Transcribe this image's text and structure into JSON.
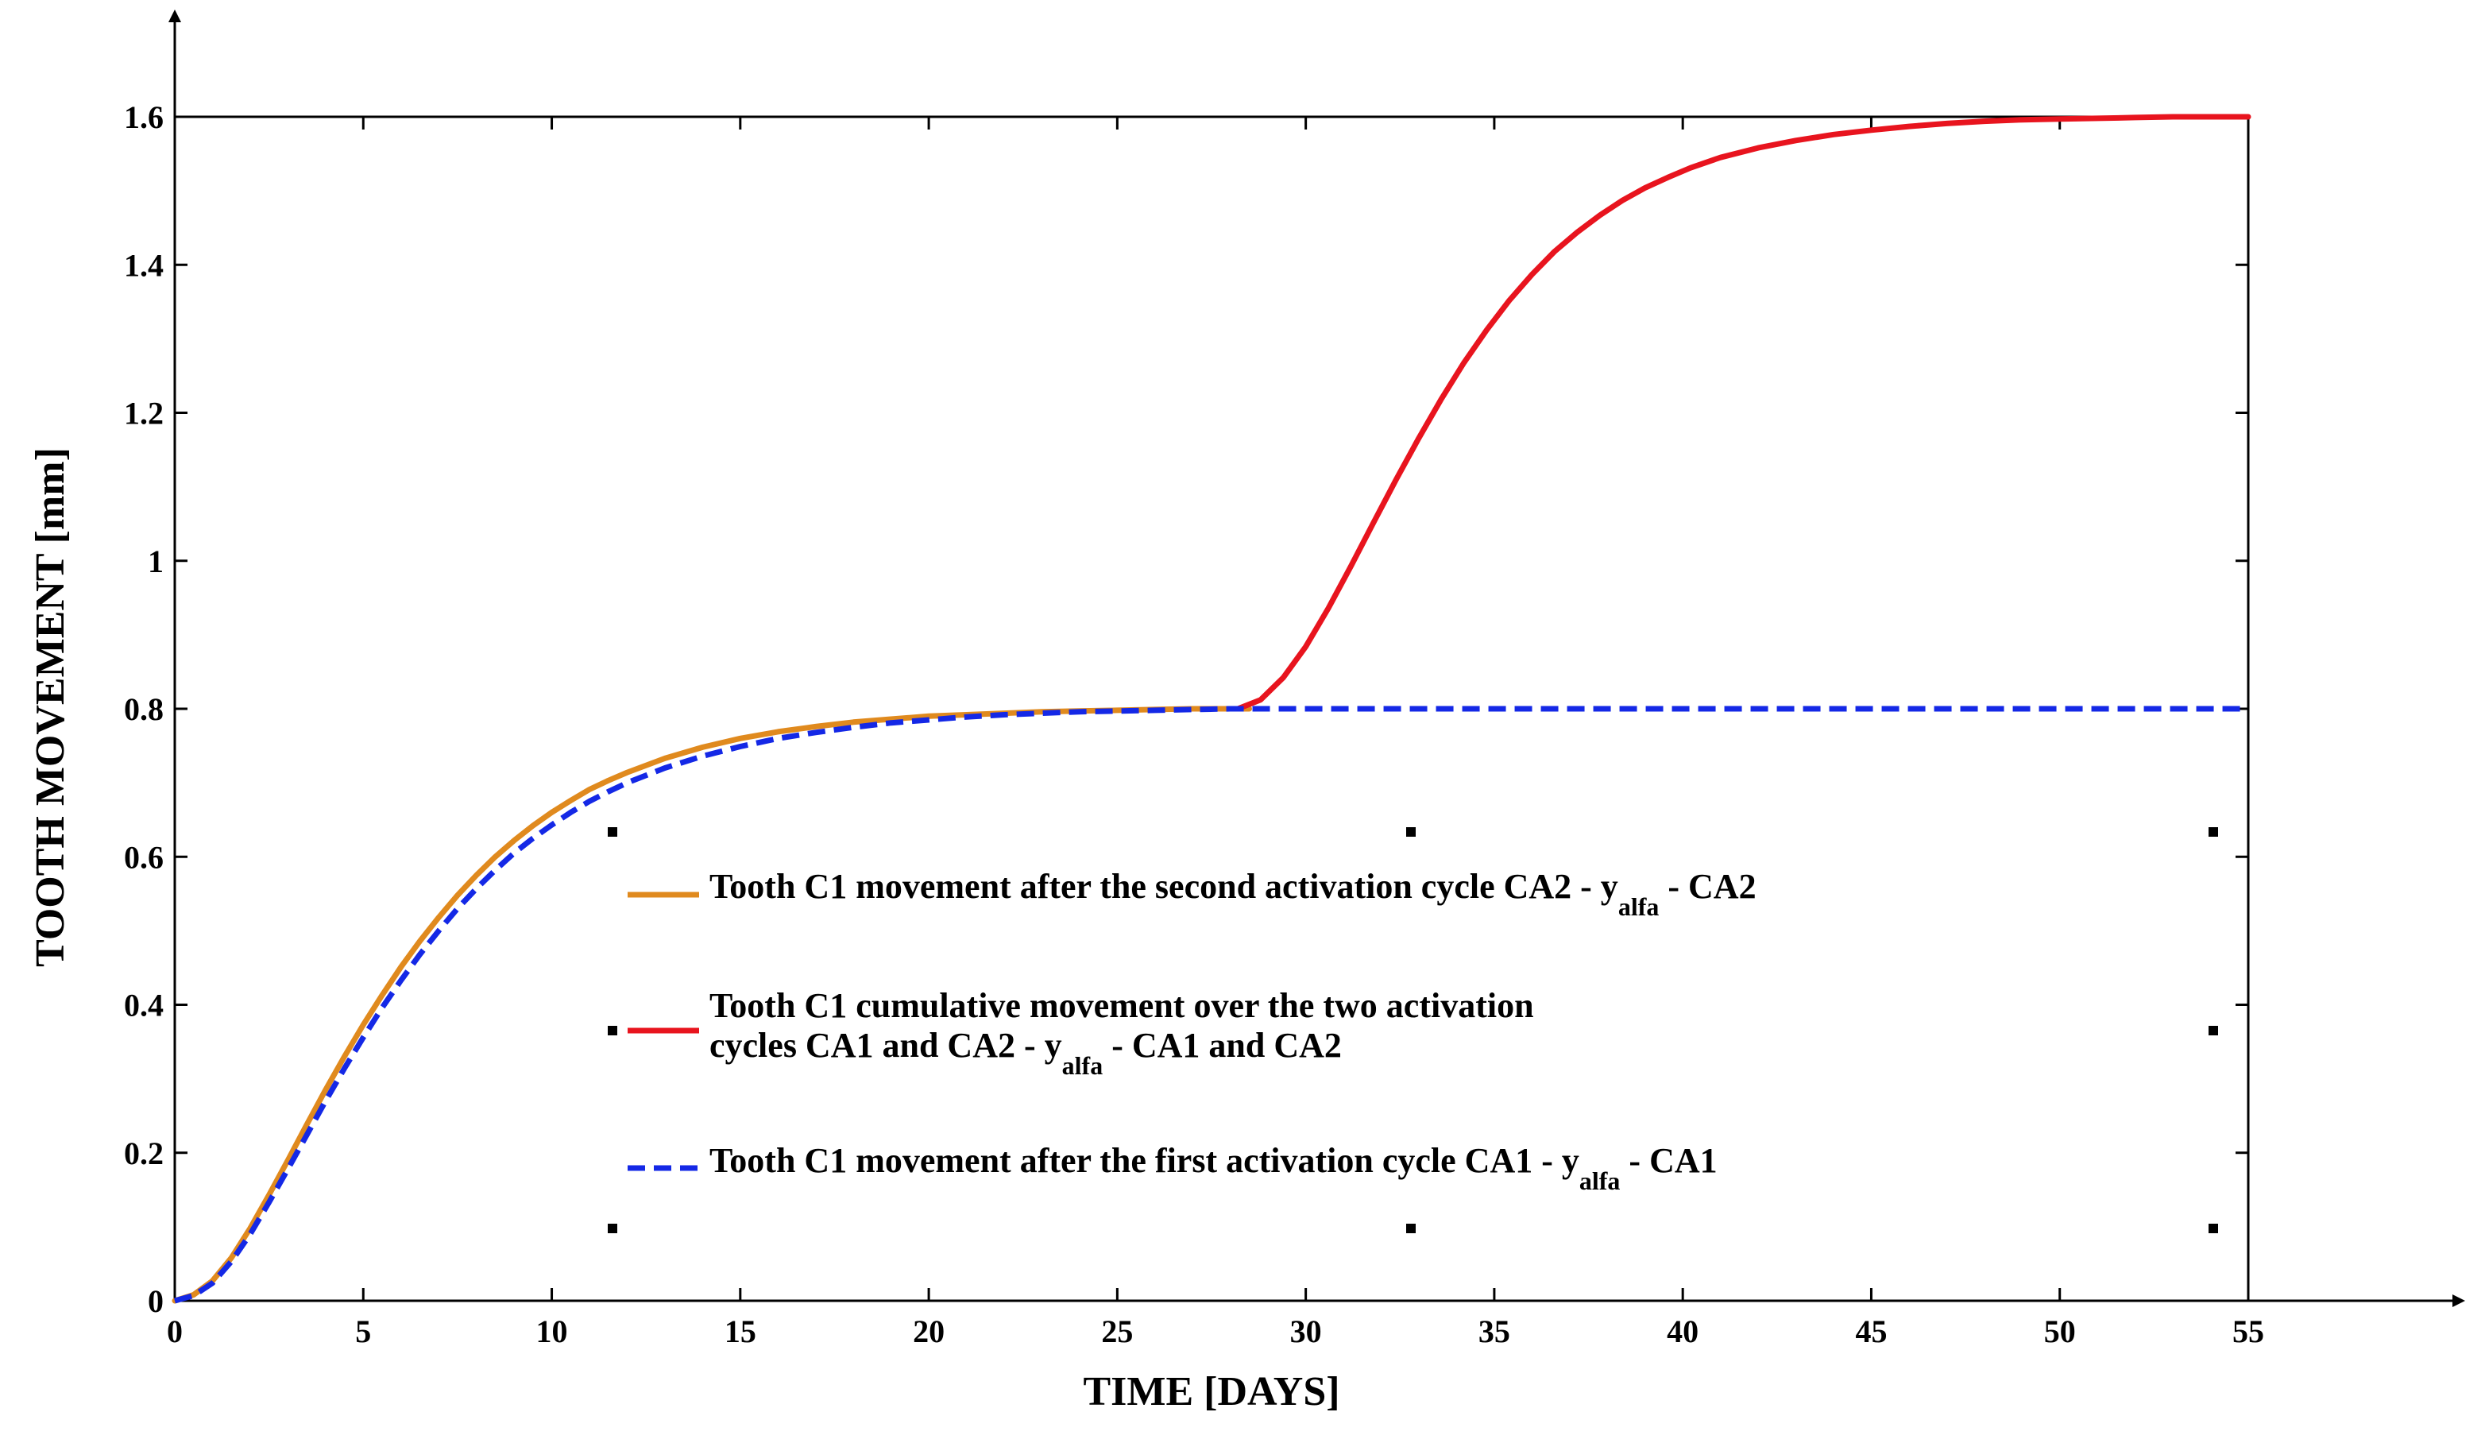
{
  "chart_data": {
    "type": "line",
    "title": "",
    "xlabel": "TIME [DAYS]",
    "ylabel": "TOOTH MOVEMENT [mm]",
    "xlim": [
      0,
      55
    ],
    "ylim": [
      0,
      1.6
    ],
    "xticks": [
      0,
      5,
      10,
      15,
      20,
      25,
      30,
      35,
      40,
      45,
      50,
      55
    ],
    "yticks": [
      0,
      0.2,
      0.4,
      0.6,
      0.8,
      1,
      1.2,
      1.4,
      1.6
    ],
    "xtick_labels": [
      "0",
      "5",
      "10",
      "15",
      "20",
      "25",
      "30",
      "35",
      "40",
      "45",
      "50",
      "55"
    ],
    "ytick_labels": [
      "0",
      "0.2",
      "0.4",
      "0.6",
      "0.8",
      "1",
      "1.2",
      "1.4",
      "1.6"
    ],
    "grid": false,
    "legend_position": "center",
    "series": [
      {
        "name": "Tooth C1 movement after the second activation cycle CA2 - y_alfa - CA2",
        "color": "#E08A1E",
        "style": "solid",
        "x": [
          0,
          0.5,
          1,
          1.5,
          2,
          2.5,
          3,
          3.5,
          4,
          4.5,
          5,
          5.5,
          6,
          6.5,
          7,
          7.5,
          8,
          8.5,
          9,
          9.5,
          10,
          10.5,
          11,
          11.5,
          12,
          13,
          14,
          15,
          16,
          17,
          18,
          19,
          20,
          21,
          22,
          23,
          24,
          25,
          26,
          27,
          28.5
        ],
        "y": [
          0,
          0.008,
          0.027,
          0.058,
          0.098,
          0.143,
          0.19,
          0.238,
          0.285,
          0.33,
          0.373,
          0.413,
          0.451,
          0.486,
          0.518,
          0.548,
          0.575,
          0.6,
          0.622,
          0.642,
          0.66,
          0.676,
          0.691,
          0.703,
          0.714,
          0.733,
          0.748,
          0.76,
          0.769,
          0.776,
          0.782,
          0.786,
          0.79,
          0.792,
          0.794,
          0.796,
          0.797,
          0.798,
          0.799,
          0.8,
          0.8
        ]
      },
      {
        "name": "Tooth C1 cumulative movement over the two activation cycles CA1 and CA2 - y_alfa - CA1 and CA2",
        "color": "#E8141E",
        "style": "solid",
        "x": [
          28.2,
          28.8,
          29.4,
          30,
          30.6,
          31.2,
          31.8,
          32.4,
          33,
          33.6,
          34.2,
          34.8,
          35.4,
          36,
          36.6,
          37.2,
          37.8,
          38.4,
          39,
          39.6,
          40.2,
          41,
          42,
          43,
          44,
          45,
          46,
          47,
          48,
          49,
          50,
          51,
          52,
          53,
          54,
          55
        ],
        "y": [
          0.8,
          0.812,
          0.842,
          0.884,
          0.936,
          0.993,
          1.052,
          1.11,
          1.166,
          1.219,
          1.268,
          1.312,
          1.352,
          1.387,
          1.418,
          1.444,
          1.467,
          1.487,
          1.504,
          1.518,
          1.531,
          1.545,
          1.558,
          1.568,
          1.576,
          1.582,
          1.587,
          1.591,
          1.594,
          1.596,
          1.597,
          1.598,
          1.599,
          1.6,
          1.6,
          1.6
        ]
      },
      {
        "name": "Tooth C1 movement after the first activation cycle CA1 - y_alfa - CA1",
        "color": "#1428E6",
        "style": "dashed",
        "x": [
          0,
          0.5,
          1,
          1.5,
          2,
          2.5,
          3,
          3.5,
          4,
          4.5,
          5,
          5.5,
          6,
          6.5,
          7,
          7.5,
          8,
          8.5,
          9,
          9.5,
          10,
          10.5,
          11,
          11.5,
          12,
          13,
          14,
          15,
          16,
          17,
          18,
          19,
          20,
          21,
          22,
          23,
          24,
          25,
          26,
          27,
          28,
          30,
          35,
          40,
          45,
          50,
          55
        ],
        "y": [
          0,
          0.007,
          0.024,
          0.053,
          0.09,
          0.133,
          0.178,
          0.224,
          0.27,
          0.314,
          0.356,
          0.396,
          0.433,
          0.468,
          0.5,
          0.53,
          0.557,
          0.582,
          0.605,
          0.625,
          0.643,
          0.66,
          0.675,
          0.688,
          0.7,
          0.72,
          0.736,
          0.749,
          0.76,
          0.768,
          0.775,
          0.781,
          0.785,
          0.789,
          0.792,
          0.794,
          0.796,
          0.797,
          0.798,
          0.799,
          0.8,
          0.8,
          0.8,
          0.8,
          0.8,
          0.8,
          0.8
        ]
      }
    ],
    "legend": {
      "entries": [
        {
          "color": "#E08A1E",
          "style": "solid",
          "line1": "Tooth C1 movement after the second activation cycle CA2 - y",
          "line1_sub": "alfa",
          "line1_tail": " - CA2"
        },
        {
          "color": "#E8141E",
          "style": "solid",
          "line1": "Tooth C1 cumulative movement over the two activation",
          "line2": "cycles CA1 and CA2 - y",
          "line2_sub": "alfa",
          "line2_tail": " - CA1 and CA2"
        },
        {
          "color": "#1428E6",
          "style": "dashed",
          "line1": "Tooth C1 movement after the first activation cycle CA1 - y",
          "line1_sub": "alfa",
          "line1_tail": " - CA1"
        }
      ]
    }
  }
}
